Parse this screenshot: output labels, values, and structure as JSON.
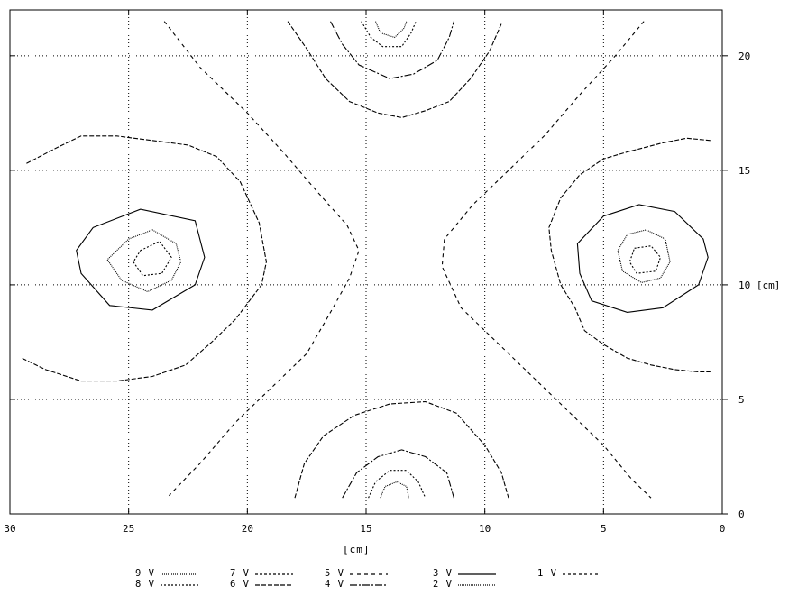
{
  "chart_data": {
    "type": "contour",
    "x_unit": "[cm]",
    "y_unit": "[cm]",
    "xlim": [
      30,
      0
    ],
    "ylim": [
      0,
      22
    ],
    "x_ticks": [
      "30",
      "25",
      "20",
      "15",
      "10",
      "5",
      "0"
    ],
    "y_ticks": [
      "0",
      "5",
      "10",
      "15",
      "20"
    ],
    "y_tick_10_label": "10 [cm]",
    "grid": true,
    "legend": [
      {
        "label": "9 V",
        "dash": "1,1"
      },
      {
        "label": "8 V",
        "dash": "2,2"
      },
      {
        "label": "7 V",
        "dash": "3,2"
      },
      {
        "label": "6 V",
        "dash": "5,2"
      },
      {
        "label": "5 V",
        "dash": "4,4"
      },
      {
        "label": "4 V",
        "dash": "8,2,2,2"
      },
      {
        "label": "3 V",
        "dash": ""
      },
      {
        "label": "2 V",
        "dash": "1,1"
      },
      {
        "label": "1 V",
        "dash": "3,3"
      }
    ],
    "series": [
      {
        "value": "3 V",
        "dash": "",
        "closed": true,
        "points": [
          [
            26.5,
            12.5
          ],
          [
            24.5,
            13.3
          ],
          [
            22.2,
            12.8
          ],
          [
            21.8,
            11.2
          ],
          [
            22.2,
            10.0
          ],
          [
            24.0,
            8.9
          ],
          [
            25.8,
            9.1
          ],
          [
            27.0,
            10.5
          ],
          [
            27.2,
            11.5
          ]
        ]
      },
      {
        "value": "2 V",
        "dash": "1,1",
        "closed": true,
        "points": [
          [
            25.0,
            12.0
          ],
          [
            24.0,
            12.4
          ],
          [
            23.0,
            11.8
          ],
          [
            22.8,
            11.0
          ],
          [
            23.2,
            10.2
          ],
          [
            24.2,
            9.7
          ],
          [
            25.3,
            10.2
          ],
          [
            25.9,
            11.1
          ]
        ]
      },
      {
        "value": "8 V",
        "dash": "2,2",
        "closed": true,
        "points": [
          [
            24.5,
            11.5
          ],
          [
            23.7,
            11.9
          ],
          [
            23.2,
            11.2
          ],
          [
            23.6,
            10.5
          ],
          [
            24.4,
            10.4
          ],
          [
            24.8,
            11.0
          ]
        ]
      },
      {
        "value": "6 V",
        "dash": "5,2",
        "closed": false,
        "points": [
          [
            29.3,
            15.3
          ],
          [
            28.0,
            16.0
          ],
          [
            27.0,
            16.5
          ],
          [
            25.5,
            16.5
          ],
          [
            24.0,
            16.3
          ],
          [
            22.5,
            16.1
          ],
          [
            21.3,
            15.6
          ],
          [
            20.3,
            14.5
          ],
          [
            19.5,
            12.7
          ],
          [
            19.2,
            11.0
          ],
          [
            19.4,
            10.0
          ],
          [
            20.5,
            8.5
          ],
          [
            21.5,
            7.5
          ],
          [
            22.6,
            6.5
          ],
          [
            24.0,
            6.0
          ],
          [
            25.5,
            5.8
          ],
          [
            27.0,
            5.8
          ],
          [
            28.5,
            6.3
          ],
          [
            29.5,
            6.8
          ]
        ]
      },
      {
        "value": "3 V",
        "dash": "",
        "closed": true,
        "points": [
          [
            5.0,
            13.0
          ],
          [
            3.5,
            13.5
          ],
          [
            2.0,
            13.2
          ],
          [
            0.8,
            12.0
          ],
          [
            0.6,
            11.2
          ],
          [
            1.0,
            10.0
          ],
          [
            2.5,
            9.0
          ],
          [
            4.0,
            8.8
          ],
          [
            5.5,
            9.3
          ],
          [
            6.0,
            10.5
          ],
          [
            6.1,
            11.8
          ]
        ]
      },
      {
        "value": "2 V",
        "dash": "1,1",
        "closed": true,
        "points": [
          [
            4.0,
            12.2
          ],
          [
            3.2,
            12.4
          ],
          [
            2.4,
            12.0
          ],
          [
            2.2,
            11.0
          ],
          [
            2.6,
            10.3
          ],
          [
            3.4,
            10.1
          ],
          [
            4.2,
            10.6
          ],
          [
            4.4,
            11.5
          ]
        ]
      },
      {
        "value": "8 V",
        "dash": "2,2",
        "closed": true,
        "points": [
          [
            3.7,
            11.6
          ],
          [
            3.0,
            11.7
          ],
          [
            2.6,
            11.2
          ],
          [
            2.8,
            10.6
          ],
          [
            3.6,
            10.5
          ],
          [
            3.9,
            11.0
          ]
        ]
      },
      {
        "value": "6 V",
        "dash": "5,2",
        "closed": false,
        "points": [
          [
            0.5,
            16.3
          ],
          [
            1.5,
            16.4
          ],
          [
            2.5,
            16.2
          ],
          [
            4.0,
            15.8
          ],
          [
            5.0,
            15.5
          ],
          [
            6.0,
            14.8
          ],
          [
            6.8,
            13.8
          ],
          [
            7.3,
            12.5
          ],
          [
            7.2,
            11.5
          ],
          [
            6.8,
            10.0
          ],
          [
            6.2,
            9.0
          ],
          [
            5.8,
            8.0
          ],
          [
            5.0,
            7.4
          ],
          [
            4.0,
            6.8
          ],
          [
            3.0,
            6.5
          ],
          [
            2.0,
            6.3
          ],
          [
            1.0,
            6.2
          ],
          [
            0.5,
            6.2
          ]
        ]
      },
      {
        "value": "6 V",
        "dash": "5,2",
        "closed": false,
        "points": [
          [
            18.3,
            21.5
          ],
          [
            17.5,
            20.3
          ],
          [
            16.7,
            19.0
          ],
          [
            15.7,
            18.0
          ],
          [
            14.5,
            17.5
          ],
          [
            13.5,
            17.3
          ],
          [
            12.5,
            17.6
          ],
          [
            11.5,
            18.0
          ],
          [
            10.6,
            19.0
          ],
          [
            9.8,
            20.2
          ],
          [
            9.3,
            21.4
          ]
        ]
      },
      {
        "value": "4 V",
        "dash": "8,2,2,2",
        "closed": false,
        "points": [
          [
            16.5,
            21.5
          ],
          [
            16.0,
            20.5
          ],
          [
            15.3,
            19.6
          ],
          [
            14.0,
            19.0
          ],
          [
            13.0,
            19.2
          ],
          [
            12.0,
            19.8
          ],
          [
            11.5,
            20.8
          ],
          [
            11.3,
            21.5
          ]
        ]
      },
      {
        "value": "8 V",
        "dash": "2,2",
        "closed": false,
        "points": [
          [
            15.2,
            21.5
          ],
          [
            14.8,
            20.8
          ],
          [
            14.3,
            20.4
          ],
          [
            13.5,
            20.4
          ],
          [
            13.1,
            21.0
          ],
          [
            12.9,
            21.5
          ]
        ]
      },
      {
        "value": "9 V",
        "dash": "1,1",
        "closed": false,
        "points": [
          [
            14.6,
            21.5
          ],
          [
            14.4,
            21.0
          ],
          [
            13.8,
            20.8
          ],
          [
            13.4,
            21.2
          ],
          [
            13.3,
            21.5
          ]
        ]
      },
      {
        "value": "6 V",
        "dash": "5,2",
        "closed": false,
        "points": [
          [
            18.0,
            0.7
          ],
          [
            17.6,
            2.2
          ],
          [
            16.8,
            3.4
          ],
          [
            15.5,
            4.3
          ],
          [
            14.0,
            4.8
          ],
          [
            12.5,
            4.9
          ],
          [
            11.2,
            4.4
          ],
          [
            10.0,
            3.0
          ],
          [
            9.3,
            1.8
          ],
          [
            9.0,
            0.7
          ]
        ]
      },
      {
        "value": "4 V",
        "dash": "8,2,2,2",
        "closed": false,
        "points": [
          [
            16.0,
            0.7
          ],
          [
            15.4,
            1.8
          ],
          [
            14.5,
            2.5
          ],
          [
            13.5,
            2.8
          ],
          [
            12.5,
            2.5
          ],
          [
            11.6,
            1.8
          ],
          [
            11.3,
            0.7
          ]
        ]
      },
      {
        "value": "8 V",
        "dash": "2,2",
        "closed": false,
        "points": [
          [
            14.9,
            0.7
          ],
          [
            14.6,
            1.4
          ],
          [
            14.0,
            1.9
          ],
          [
            13.3,
            1.9
          ],
          [
            12.8,
            1.4
          ],
          [
            12.5,
            0.7
          ]
        ]
      },
      {
        "value": "9 V",
        "dash": "1,1",
        "closed": false,
        "points": [
          [
            14.4,
            0.7
          ],
          [
            14.2,
            1.2
          ],
          [
            13.7,
            1.4
          ],
          [
            13.3,
            1.2
          ],
          [
            13.2,
            0.7
          ]
        ]
      },
      {
        "value": "5 V",
        "dash": "4,4",
        "closed": false,
        "points": [
          [
            23.5,
            21.5
          ],
          [
            22.0,
            19.5
          ],
          [
            20.0,
            17.5
          ],
          [
            18.5,
            15.8
          ],
          [
            17.0,
            14.0
          ],
          [
            15.8,
            12.6
          ],
          [
            15.3,
            11.5
          ],
          [
            15.7,
            10.3
          ],
          [
            16.5,
            8.8
          ],
          [
            17.5,
            7.0
          ],
          [
            19.0,
            5.5
          ],
          [
            20.5,
            4.0
          ],
          [
            22.0,
            2.2
          ],
          [
            23.3,
            0.8
          ]
        ]
      },
      {
        "value": "5 V",
        "dash": "4,4",
        "closed": false,
        "points": [
          [
            3.3,
            21.5
          ],
          [
            4.5,
            20.0
          ],
          [
            6.0,
            18.3
          ],
          [
            7.5,
            16.5
          ],
          [
            9.0,
            15.0
          ],
          [
            10.5,
            13.5
          ],
          [
            11.7,
            12.0
          ],
          [
            11.8,
            10.8
          ],
          [
            11.0,
            9.0
          ],
          [
            9.5,
            7.5
          ],
          [
            8.0,
            6.0
          ],
          [
            6.5,
            4.5
          ],
          [
            5.0,
            3.0
          ],
          [
            3.8,
            1.5
          ],
          [
            3.0,
            0.7
          ]
        ]
      }
    ]
  }
}
